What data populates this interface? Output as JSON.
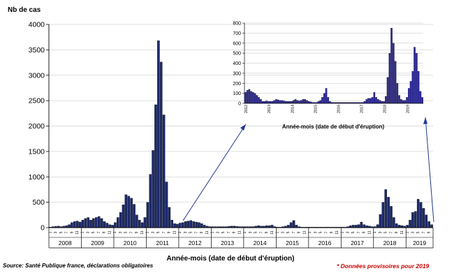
{
  "texts": {
    "y_axis_label": "Nb de cas",
    "x_axis_label": "Année-mois (date de début d'éruption)",
    "inset_x_axis_label": "Année-mois (date de début d'éruption)",
    "source": "Source: Santé Publique france, déclarations obligatoires",
    "provisional": "*  Données provisoires pour 2019"
  },
  "colors": {
    "bar": "#1c2a6b",
    "inset_bar": "#2e2aa0",
    "arrow": "#1f3a8f",
    "grid": "#c0c0c0",
    "accent": "#cc0000"
  },
  "chart_data": [
    {
      "type": "bar",
      "title": "",
      "xlabel": "Année-mois (date de début d'éruption)",
      "ylabel": "Nb de cas",
      "ylim": [
        0,
        4000
      ],
      "yticks": [
        0,
        500,
        1000,
        1500,
        2000,
        2500,
        3000,
        3500,
        4000
      ],
      "month_ticks": [
        "1",
        "3",
        "5",
        "7",
        "9",
        "11"
      ],
      "years": [
        "2008",
        "2009",
        "2010",
        "2011",
        "2012",
        "2013",
        "2014",
        "2015",
        "2016",
        "2017",
        "2018",
        "2019"
      ],
      "values": [
        10,
        20,
        25,
        30,
        20,
        30,
        40,
        60,
        100,
        120,
        130,
        110,
        150,
        180,
        200,
        150,
        180,
        200,
        220,
        180,
        120,
        90,
        60,
        50,
        100,
        200,
        300,
        450,
        650,
        620,
        580,
        460,
        250,
        150,
        100,
        200,
        500,
        1050,
        1520,
        2420,
        3680,
        3260,
        2220,
        900,
        400,
        150,
        80,
        70,
        90,
        100,
        120,
        130,
        140,
        120,
        110,
        100,
        80,
        50,
        30,
        20,
        20,
        20,
        20,
        20,
        20,
        20,
        25,
        30,
        30,
        25,
        20,
        20,
        20,
        20,
        20,
        20,
        30,
        40,
        30,
        30,
        40,
        40,
        50,
        20,
        10,
        10,
        20,
        30,
        50,
        100,
        140,
        50,
        20,
        10,
        10,
        10,
        10,
        10,
        10,
        10,
        10,
        10,
        10,
        10,
        10,
        10,
        10,
        10,
        10,
        10,
        20,
        40,
        50,
        50,
        60,
        110,
        60,
        40,
        30,
        20,
        20,
        60,
        260,
        500,
        750,
        600,
        420,
        200,
        80,
        50,
        40,
        30,
        50,
        150,
        300,
        320,
        560,
        500,
        380,
        250,
        120,
        60
      ]
    },
    {
      "type": "bar",
      "title": "",
      "xlabel": "Année-mois (date de début d'éruption)",
      "ylabel": "",
      "ylim": [
        0,
        800
      ],
      "yticks": [
        0,
        100,
        200,
        300,
        400,
        500,
        600,
        700,
        800
      ],
      "years": [
        "2012",
        "2013",
        "2014",
        "2015",
        "2016",
        "2017",
        "2018",
        "2019"
      ],
      "values": [
        110,
        130,
        140,
        120,
        110,
        100,
        80,
        60,
        40,
        20,
        20,
        25,
        20,
        20,
        20,
        30,
        40,
        35,
        30,
        30,
        25,
        20,
        20,
        20,
        20,
        30,
        40,
        30,
        25,
        30,
        40,
        40,
        30,
        20,
        15,
        10,
        10,
        10,
        20,
        30,
        60,
        100,
        150,
        60,
        20,
        10,
        10,
        10,
        10,
        10,
        10,
        10,
        10,
        10,
        10,
        10,
        10,
        10,
        10,
        10,
        10,
        10,
        20,
        40,
        50,
        50,
        60,
        110,
        60,
        40,
        30,
        20,
        20,
        70,
        260,
        500,
        750,
        600,
        420,
        200,
        80,
        40,
        30,
        30,
        60,
        150,
        220,
        320,
        560,
        500,
        320,
        120,
        60
      ]
    }
  ]
}
